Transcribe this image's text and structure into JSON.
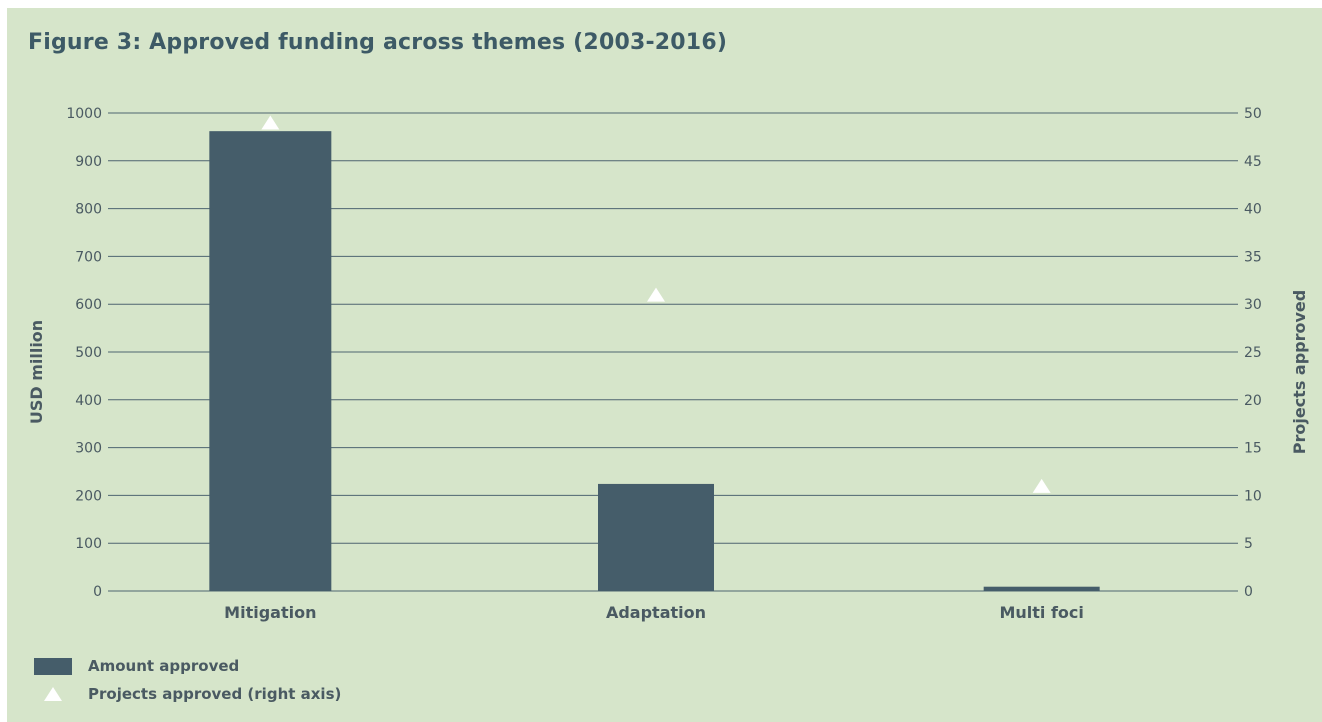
{
  "chart_data": {
    "type": "bar",
    "title": "Figure 3: Approved funding across themes (2003-2016)",
    "categories": [
      "Mitigation",
      "Adaptation",
      "Multi foci"
    ],
    "series": [
      {
        "name": "Amount approved",
        "axis": "left",
        "mark": "bar",
        "values": [
          962,
          224,
          9
        ]
      },
      {
        "name": "Projects approved (right axis)",
        "axis": "right",
        "mark": "triangle",
        "values": [
          49,
          31,
          11
        ]
      }
    ],
    "ylabel": "USD million",
    "ylabel_right": "Projects approved",
    "ylim": [
      0,
      1000
    ],
    "ylim_right": [
      0,
      50
    ],
    "yticks": [
      "0",
      "100",
      "200",
      "300",
      "400",
      "500",
      "600",
      "700",
      "800",
      "900",
      "1000"
    ],
    "yticks_right": [
      "0",
      "5",
      "10",
      "15",
      "20",
      "25",
      "30",
      "35",
      "40",
      "45",
      "50"
    ],
    "grid": true,
    "legend_position": "bottom-left",
    "colors": {
      "background": "#d6e5ca",
      "bar": "#455d6a",
      "marker": "#ffffff",
      "title": "#3d5a66",
      "text": "#4a5a62",
      "grid": "#4e6570"
    }
  },
  "legend": {
    "items": [
      {
        "label": "Amount approved",
        "icon": "bar-swatch"
      },
      {
        "label": "Projects approved (right axis)",
        "icon": "triangle-marker"
      }
    ]
  }
}
